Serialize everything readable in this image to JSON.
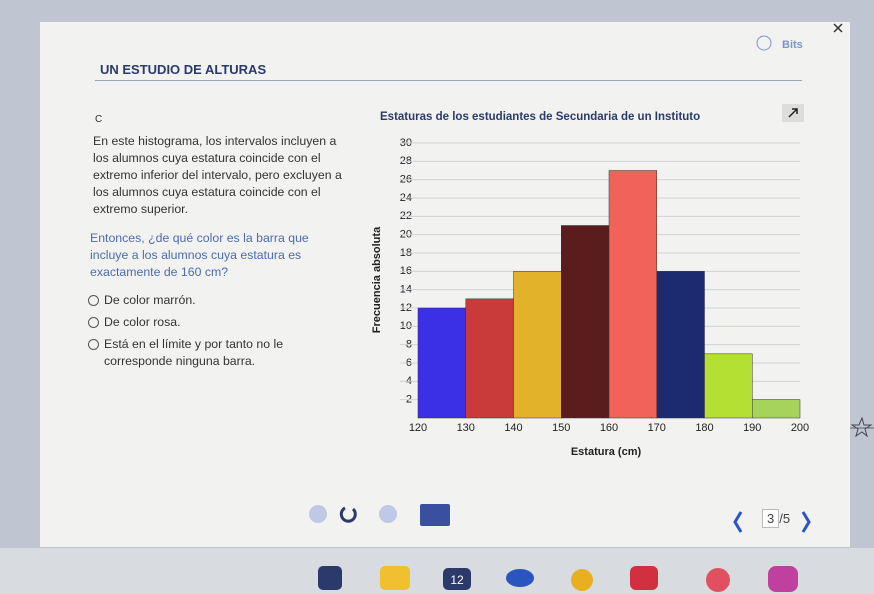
{
  "header": {
    "title": "UN ESTUDIO DE ALTURAS",
    "brand": "Bits"
  },
  "question": {
    "label": "C",
    "paragraph": "En este histograma, los intervalos incluyen a los alumnos cuya estatura coincide con el extremo inferior del intervalo, pero excluyen a los alumnos cuya estatura coincide con el extremo superior.",
    "prompt": "Entonces, ¿de qué color es la barra que incluye a los alumnos cuya estatura es exactamente de 160 cm?",
    "options": [
      "De color marrón.",
      "De color rosa.",
      "Está en el límite y por tanto no le corresponde ninguna barra."
    ]
  },
  "chart_data": {
    "type": "histogram",
    "title": "Estaturas de los estudiantes de Secundaria de un Instituto",
    "x_label": "Estatura (cm)",
    "y_label": "Frecuencia absoluta",
    "bins": [
      120,
      130,
      140,
      150,
      160,
      170,
      180,
      190,
      200
    ],
    "values": [
      12,
      13,
      16,
      21,
      27,
      16,
      7,
      2
    ],
    "colors": [
      "#3b30e6",
      "#c93a3a",
      "#e2b22a",
      "#5b1c1e",
      "#f0625a",
      "#1c2a70",
      "#b4e034",
      "#a6d45a"
    ],
    "xlim": [
      120,
      200
    ],
    "ylim": [
      0,
      30
    ],
    "xticks": [
      120,
      130,
      140,
      150,
      160,
      170,
      180,
      190,
      200
    ],
    "yticks": [
      2,
      4,
      6,
      8,
      10,
      12,
      14,
      16,
      18,
      20,
      22,
      24,
      26,
      28,
      30
    ],
    "grid": true
  },
  "pager": {
    "current": "3",
    "total": "/5"
  },
  "taskbar": {
    "calendar_day": "12"
  }
}
